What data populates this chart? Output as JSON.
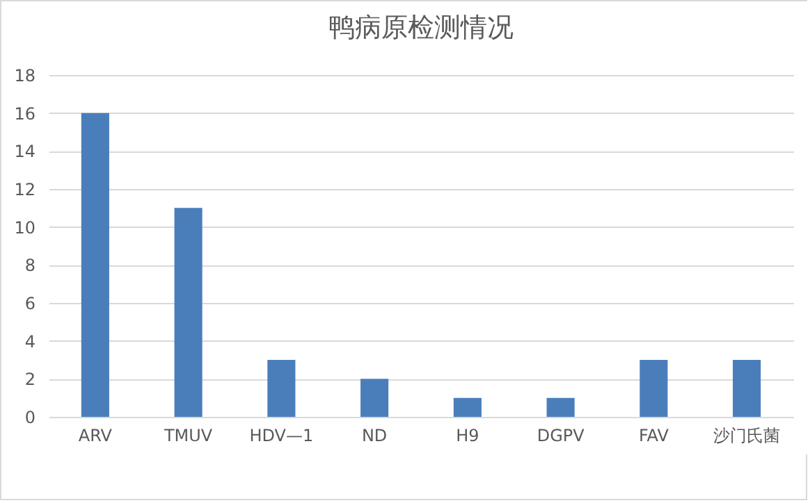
{
  "chart_data": {
    "type": "bar",
    "title": "鸭病原检测情况",
    "categories": [
      "ARV",
      "TMUV",
      "HDV—1",
      "ND",
      "H9",
      "DGPV",
      "FAV",
      "沙门氏菌"
    ],
    "values": [
      16,
      11,
      3,
      2,
      1,
      1,
      3,
      3
    ],
    "color": "#4a7ebb",
    "ylim": [
      0,
      18
    ],
    "yticks": [
      0,
      2,
      4,
      6,
      8,
      10,
      12,
      14,
      16,
      18
    ],
    "grid": "y"
  }
}
